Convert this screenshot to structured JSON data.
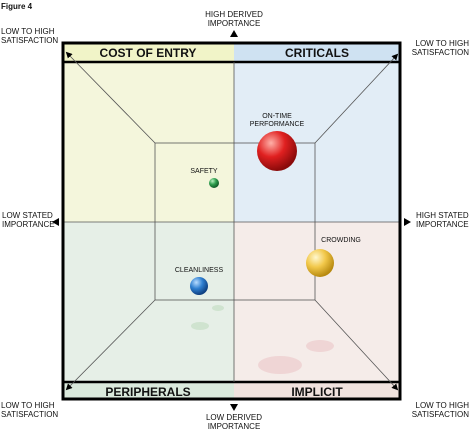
{
  "figure_label": "Figure 4",
  "axes": {
    "top": [
      "HIGH DERIVED",
      "IMPORTANCE"
    ],
    "bottom": [
      "LOW DERIVED",
      "IMPORTANCE"
    ],
    "left": [
      "LOW STATED",
      "IMPORTANCE"
    ],
    "right": [
      "HIGH STATED",
      "IMPORTANCE"
    ]
  },
  "corners": {
    "top_left": [
      "LOW TO HIGH",
      "SATISFACTION"
    ],
    "top_right": [
      "LOW TO HIGH",
      "SATISFACTION"
    ],
    "bottom_left": [
      "LOW TO HIGH",
      "SATISFACTION"
    ],
    "bottom_right": [
      "LOW TO HIGH",
      "SATISFACTION"
    ]
  },
  "quadrants": {
    "top_left": "COST OF ENTRY",
    "top_right": "CRITICALS",
    "bottom_left": "PERIPHERALS",
    "bottom_right": "IMPLICIT"
  },
  "items": [
    {
      "label": [
        "ON-TIME",
        "PERFORMANCE"
      ]
    },
    {
      "label": [
        "SAFETY"
      ]
    },
    {
      "label": [
        "CROWDING"
      ]
    },
    {
      "label": [
        "CLEANLINESS"
      ]
    }
  ]
}
